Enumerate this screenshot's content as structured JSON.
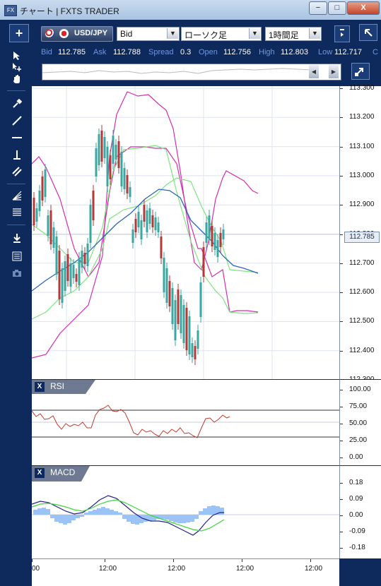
{
  "window": {
    "app_icon": "FX",
    "title": "チャート | FXTS TRADER",
    "minimize": "−",
    "maximize": "□",
    "close": "X"
  },
  "toolbar": {
    "add_button": "+",
    "symbol": "USD/JPY",
    "price_type": "Bid",
    "chart_type": "ローソク足",
    "timeframe": "1時間足"
  },
  "quote": {
    "bid_label": "Bid",
    "bid": "112.785",
    "ask_label": "Ask",
    "ask": "112.788",
    "spread_label": "Spread",
    "spread": "0.3",
    "open_label": "Open",
    "open": "112.756",
    "high_label": "High",
    "high": "112.803",
    "low_label": "Low",
    "low": "112.717",
    "close_label": "C"
  },
  "price_axis": {
    "ticks": [
      "113.300",
      "113.200",
      "113.100",
      "113.000",
      "112.900",
      "112.800",
      "112.700",
      "112.600",
      "112.500",
      "112.400",
      "112.300"
    ],
    "current_price": "112.785"
  },
  "panes": {
    "rsi": {
      "close_label": "X",
      "label": "RSI",
      "ticks": [
        "100.00",
        "75.00",
        "50.00",
        "25.00",
        "0.00"
      ]
    },
    "macd": {
      "close_label": "X",
      "label": "MACD",
      "ticks": [
        "0.18",
        "0.09",
        "0.00",
        "-0.09",
        "-0.18"
      ]
    }
  },
  "time_axis": {
    "labels": [
      "00",
      "12:00",
      "12:00",
      "12:00",
      "12:00"
    ]
  },
  "colors": {
    "background": "#0e2a5c",
    "accent_label": "#6f97e0",
    "bull_candle": "#3aa7a0",
    "bear_candle": "#b33a3a",
    "bollinger_outer": "#d32fb0",
    "bollinger_inner": "#7ee37e",
    "moving_average": "#2a64b8",
    "rsi_line": "#c0392b",
    "macd_line": "#22228a",
    "signal_line": "#3ed43e",
    "histogram": "#9cc3f5"
  }
}
